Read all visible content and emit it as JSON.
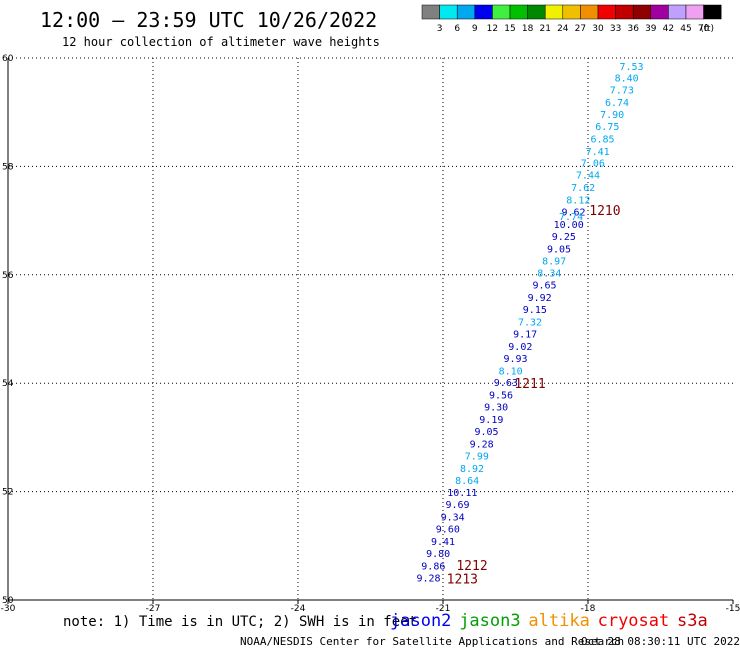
{
  "header": {
    "title": "12:00 – 23:59 UTC 10/26/2022",
    "subtitle": "12 hour collection of altimeter wave heights"
  },
  "colorbar": {
    "labels": [
      "3",
      "6",
      "9",
      "12",
      "15",
      "18",
      "21",
      "24",
      "27",
      "30",
      "33",
      "36",
      "39",
      "42",
      "45",
      "70"
    ],
    "unit": "(ft)",
    "colors": [
      "#808080",
      "#00e8f0",
      "#00a8f0",
      "#0000f0",
      "#40f040",
      "#00c000",
      "#008800",
      "#f0f000",
      "#f0c000",
      "#f09000",
      "#f00000",
      "#c00000",
      "#900000",
      "#a000a0",
      "#c0a0ff",
      "#f0a0f0",
      "#000000"
    ]
  },
  "footer": {
    "note": "note: 1) Time is in UTC; 2) SWH is in feet",
    "credit": "NOAA/NESDIS Center for Satellite Applications and Research",
    "timestamp": "Oct 28 08:30:11 UTC 2022"
  },
  "legend": [
    {
      "name": "jason2",
      "color": "#0000f0"
    },
    {
      "name": "jason3",
      "color": "#00a000"
    },
    {
      "name": "altika",
      "color": "#f09000"
    },
    {
      "name": "cryosat",
      "color": "#f00000"
    },
    {
      "name": "s3a",
      "color": "#c00000"
    }
  ],
  "chart_data": {
    "type": "scatter",
    "xlim": [
      -30,
      -15
    ],
    "ylim": [
      50,
      60
    ],
    "xticks": [
      "-30",
      "-27",
      "-24",
      "-21",
      "-18",
      "-15"
    ],
    "yticks": [
      "50",
      "52",
      "54",
      "56",
      "58",
      "60"
    ],
    "grid": true,
    "points": [
      {
        "x": -17.1,
        "y": 59.83,
        "v": "7.53",
        "c": "#00a8f0"
      },
      {
        "x": -17.2,
        "y": 59.62,
        "v": "8.40",
        "c": "#00a8f0"
      },
      {
        "x": -17.3,
        "y": 59.4,
        "v": "7.73",
        "c": "#00a8f0"
      },
      {
        "x": -17.4,
        "y": 59.17,
        "v": "6.74",
        "c": "#00a8f0"
      },
      {
        "x": -17.5,
        "y": 58.95,
        "v": "7.90",
        "c": "#00a8f0"
      },
      {
        "x": -17.6,
        "y": 58.73,
        "v": "6.75",
        "c": "#00a8f0"
      },
      {
        "x": -17.7,
        "y": 58.5,
        "v": "6.85",
        "c": "#00a8f0"
      },
      {
        "x": -17.8,
        "y": 58.27,
        "v": "7.41",
        "c": "#00a8f0"
      },
      {
        "x": -17.9,
        "y": 58.05,
        "v": "7.06",
        "c": "#00a8f0"
      },
      {
        "x": -18.0,
        "y": 57.83,
        "v": "7.44",
        "c": "#00a8f0"
      },
      {
        "x": -18.1,
        "y": 57.6,
        "v": "7.62",
        "c": "#00a8f0"
      },
      {
        "x": -18.2,
        "y": 57.37,
        "v": "8.12",
        "c": "#00a8f0"
      },
      {
        "x": -18.3,
        "y": 57.15,
        "v": "9.62",
        "c": "#0000c0"
      },
      {
        "x": -18.35,
        "y": 57.07,
        "v": "7.74",
        "c": "#00a8f0"
      },
      {
        "x": -18.4,
        "y": 56.92,
        "v": "10.00",
        "c": "#0000c0"
      },
      {
        "x": -18.5,
        "y": 56.7,
        "v": "9.25",
        "c": "#0000c0"
      },
      {
        "x": -18.6,
        "y": 56.47,
        "v": "9.05",
        "c": "#0000c0"
      },
      {
        "x": -18.7,
        "y": 56.25,
        "v": "8.97",
        "c": "#00a8f0"
      },
      {
        "x": -18.8,
        "y": 56.02,
        "v": "8.34",
        "c": "#00a8f0"
      },
      {
        "x": -18.9,
        "y": 55.8,
        "v": "9.65",
        "c": "#0000c0"
      },
      {
        "x": -19.0,
        "y": 55.57,
        "v": "9.92",
        "c": "#0000c0"
      },
      {
        "x": -19.1,
        "y": 55.35,
        "v": "9.15",
        "c": "#0000c0"
      },
      {
        "x": -19.2,
        "y": 55.12,
        "v": "7.32",
        "c": "#00a8f0"
      },
      {
        "x": -19.3,
        "y": 54.9,
        "v": "9.17",
        "c": "#0000c0"
      },
      {
        "x": -19.4,
        "y": 54.67,
        "v": "9.02",
        "c": "#0000c0"
      },
      {
        "x": -19.5,
        "y": 54.45,
        "v": "9.93",
        "c": "#0000c0"
      },
      {
        "x": -19.6,
        "y": 54.22,
        "v": "8.10",
        "c": "#00a8f0"
      },
      {
        "x": -19.7,
        "y": 54.0,
        "v": "9.63",
        "c": "#0000c0"
      },
      {
        "x": -19.8,
        "y": 53.77,
        "v": "9.56",
        "c": "#0000c0"
      },
      {
        "x": -19.9,
        "y": 53.55,
        "v": "9.30",
        "c": "#0000c0"
      },
      {
        "x": -20.0,
        "y": 53.32,
        "v": "9.19",
        "c": "#0000c0"
      },
      {
        "x": -20.1,
        "y": 53.1,
        "v": "9.05",
        "c": "#0000c0"
      },
      {
        "x": -20.2,
        "y": 52.87,
        "v": "9.28",
        "c": "#0000c0"
      },
      {
        "x": -20.3,
        "y": 52.65,
        "v": "7.99",
        "c": "#00a8f0"
      },
      {
        "x": -20.4,
        "y": 52.42,
        "v": "8.92",
        "c": "#00a8f0"
      },
      {
        "x": -20.5,
        "y": 52.2,
        "v": "8.64",
        "c": "#00a8f0"
      },
      {
        "x": -20.6,
        "y": 51.97,
        "v": "10.11",
        "c": "#0000c0"
      },
      {
        "x": -20.7,
        "y": 51.75,
        "v": "9.69",
        "c": "#0000c0"
      },
      {
        "x": -20.8,
        "y": 51.52,
        "v": "9.34",
        "c": "#0000c0"
      },
      {
        "x": -20.9,
        "y": 51.3,
        "v": "9.60",
        "c": "#0000c0"
      },
      {
        "x": -21.0,
        "y": 51.07,
        "v": "9.41",
        "c": "#0000c0"
      },
      {
        "x": -21.1,
        "y": 50.85,
        "v": "9.80",
        "c": "#0000c0"
      },
      {
        "x": -21.2,
        "y": 50.62,
        "v": "9.86",
        "c": "#0000c0"
      },
      {
        "x": -21.3,
        "y": 50.4,
        "v": "9.28",
        "c": "#0000c0"
      }
    ],
    "pass_labels": [
      {
        "x": -17.65,
        "y": 57.2,
        "text": "1210"
      },
      {
        "x": -19.2,
        "y": 54.0,
        "text": "1211"
      },
      {
        "x": -20.4,
        "y": 50.65,
        "text": "1212"
      },
      {
        "x": -20.6,
        "y": 50.4,
        "text": "1213"
      }
    ]
  }
}
